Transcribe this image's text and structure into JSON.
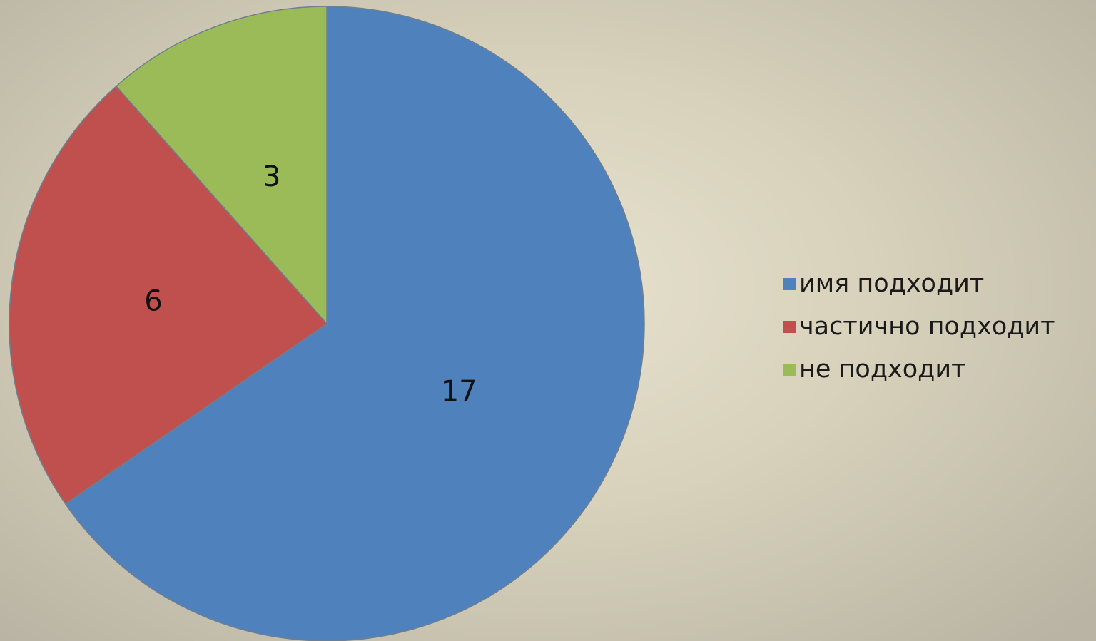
{
  "chart_data": {
    "type": "pie",
    "categories": [
      "имя подходит",
      "частично подходит",
      "не подходит"
    ],
    "values": [
      17,
      6,
      3
    ],
    "data_labels": [
      "17",
      "6",
      "3"
    ],
    "colors": [
      "#4f81bd",
      "#c0504d",
      "#9bbb59"
    ],
    "start_angle_deg": 0,
    "direction": "clockwise",
    "legend_position": "right"
  }
}
